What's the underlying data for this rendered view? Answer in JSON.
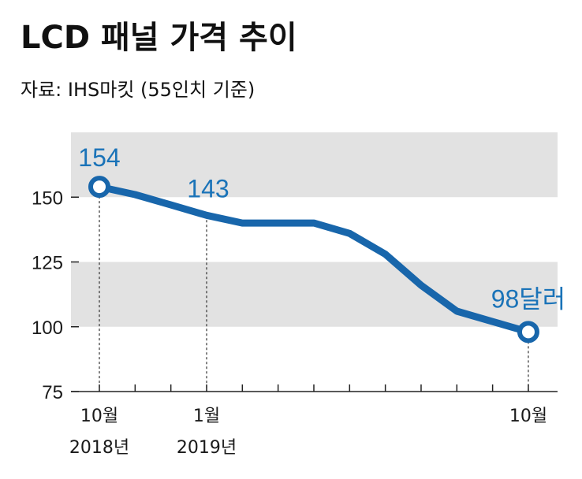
{
  "title": "LCD 패널 가격 추이",
  "source": "자료: IHS마킷 (55인치 기준)",
  "colors": {
    "line": "#1866ab",
    "label": "#1a73b8",
    "band": "#e2e2e2",
    "axis": "#222222"
  },
  "chart_data": {
    "type": "line",
    "title": "LCD 패널 가격 추이",
    "xlabel": "",
    "ylabel": "",
    "ylim": [
      75,
      175
    ],
    "yticks": [
      75,
      100,
      125,
      150
    ],
    "grid": false,
    "bands": [
      [
        100,
        125
      ],
      [
        150,
        175
      ]
    ],
    "x": [
      0,
      1,
      2,
      3,
      4,
      5,
      6,
      7,
      8,
      9,
      10,
      11,
      12
    ],
    "values": [
      154,
      151,
      147,
      143,
      140,
      140,
      140,
      136,
      128,
      116,
      106,
      102,
      98
    ],
    "x_labels": [
      {
        "index": 0,
        "line1": "10월",
        "line2": "2018년"
      },
      {
        "index": 3,
        "line1": "1월",
        "line2": "2019년"
      },
      {
        "index": 12,
        "line1": "10월",
        "line2": ""
      }
    ],
    "annotations": [
      {
        "index": 0,
        "text": "154",
        "marker": true
      },
      {
        "index": 3,
        "text": "143",
        "marker": false
      },
      {
        "index": 12,
        "text": "98달러",
        "marker": true
      }
    ]
  }
}
